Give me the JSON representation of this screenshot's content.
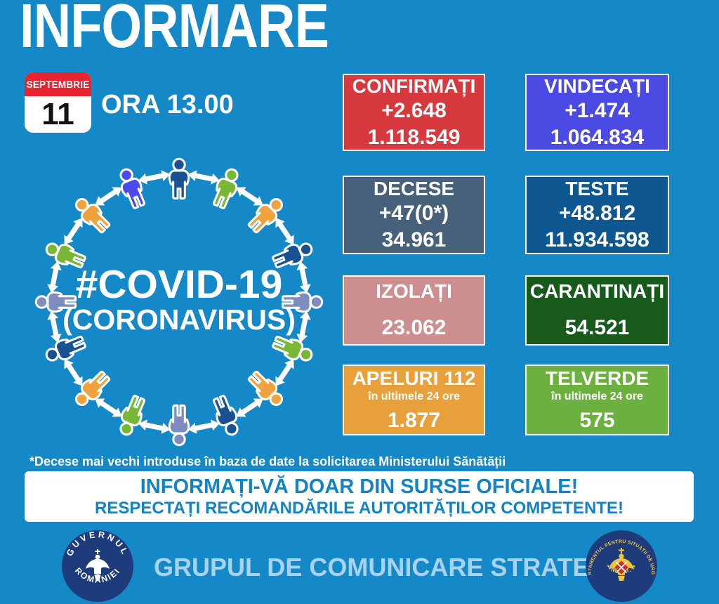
{
  "title": "INFORMARE",
  "date": {
    "month": "SEPTEMBRIE",
    "day": "11",
    "time_label": "ORA 13.00"
  },
  "ring": {
    "hashtag": "#COVID-19",
    "subtitle": "(CORONAVIRUS)",
    "arrow_color": "#FFFFFF",
    "people_colors": [
      "#1A5291",
      "#79B836",
      "#F0A23C",
      "#1A5291",
      "#7E8CC0",
      "#79B836",
      "#F0A23C",
      "#1A5291",
      "#7E8CC0",
      "#79B836",
      "#F0A23C",
      "#1A5291",
      "#7E8CC0",
      "#79B836",
      "#F0A23C",
      "#4C4AEC"
    ]
  },
  "stats": [
    {
      "id": "confirmati",
      "label": "CONFIRMAȚI",
      "delta": "+2.648",
      "total": "1.118.549",
      "bg": "#D63A3F"
    },
    {
      "id": "vindecati",
      "label": "VINDECAȚI",
      "delta": "+1.474",
      "total": "1.064.834",
      "bg": "#4B4AE2"
    },
    {
      "id": "decese",
      "label": "DECESE",
      "delta": "+47(0*)",
      "total": "34.961",
      "bg": "#48617A"
    },
    {
      "id": "teste",
      "label": "TESTE",
      "delta": "+48.812",
      "total": "11.934.598",
      "bg": "#0F5791"
    },
    {
      "id": "izolati",
      "label": "IZOLAȚI",
      "total": "23.062",
      "bg": "#CC8E8E"
    },
    {
      "id": "carantinati",
      "label": "CARANTINAȚI",
      "total": "54.521",
      "bg": "#175A1C"
    },
    {
      "id": "apeluri",
      "label": "APELURI 112",
      "sub": "în ultimele 24 ore",
      "total": "1.877",
      "bg": "#E8A03C"
    },
    {
      "id": "telverde",
      "label": "TELVERDE",
      "sub": "în ultimele 24 ore",
      "total": "575",
      "bg": "#6CB13F"
    }
  ],
  "footnote": "*Decese mai vechi introduse în baza de date la solicitarea Ministerului Sănătății",
  "banner": {
    "line1": "INFORMAȚI-VĂ DOAR DIN SURSE OFICIALE!",
    "line2": "RESPECTAȚI RECOMANDĂRILE AUTORITĂȚILOR COMPETENTE!"
  },
  "footer": {
    "title": "GRUPUL DE COMUNICARE STRATEGICĂ",
    "left_logo": {
      "top": "GUVERNUL",
      "bottom": "ROMÂNIEI"
    },
    "right_logo": {
      "around": "DEPARTAMENTUL PENTRU SITUAȚII DE URGENȚĂ",
      "bottom": "*  M.A.I.  *"
    }
  },
  "colors": {
    "background": "#1589C8",
    "banner_text": "#1483C6",
    "footer_title": "#A9D2EC",
    "calendar_red": "#E72430",
    "seal_navy": "#1E3C7C",
    "seal_gold": "#F0C43C",
    "seal_shield_red": "#C4312F"
  }
}
